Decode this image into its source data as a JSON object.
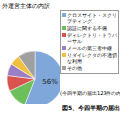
{
  "chart_data": {
    "type": "pie",
    "title": "外運営主体の内訳",
    "subtitle": "(今四半期の届出123件の内訳)",
    "caption": "図5、今四半期の届出",
    "categories": [
      "クロスサイト・スクリプティング",
      "認証に関する不備",
      "ディレクトリ・トラバーサル",
      "メールの第三者中継",
      "リダイレクタの不適切な利用",
      "その他"
    ],
    "values": [
      56,
      12,
      9,
      7,
      6,
      10
    ],
    "value_labels": [
      "56%",
      null,
      null,
      null,
      null,
      null
    ],
    "colors": [
      "#7fa7d9",
      "#6cbf5a",
      "#d9534f",
      "#9b7fc4",
      "#f0c040",
      "#a0a0a0"
    ],
    "data_labels": true,
    "legend": "right"
  }
}
